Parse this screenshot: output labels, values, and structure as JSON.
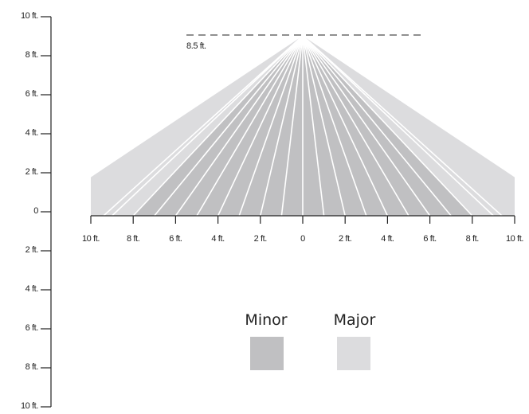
{
  "diagram": {
    "height_label": "8.5 ft.",
    "y_axis_labels": [
      "10 ft.",
      "8 ft.",
      "6 ft.",
      "4 ft.",
      "2 ft.",
      "0",
      "2 ft.",
      "4 ft.",
      "6 ft.",
      "8 ft.",
      "10 ft."
    ],
    "x_axis_labels": [
      "10 ft.",
      "8 ft.",
      "6 ft.",
      "4 ft.",
      "2 ft.",
      "0",
      "2 ft.",
      "4 ft.",
      "6 ft.",
      "8 ft.",
      "10 ft."
    ],
    "minor_zone": {
      "reach_ft": 8,
      "color": "#c0c0c2"
    },
    "major_zone": {
      "reach_ft": 10,
      "edge_height_ft": 2,
      "color": "#dcdcde"
    },
    "ray_color": "#ffffff",
    "axis_color": "#222222"
  },
  "legend": {
    "minor_label": "Minor",
    "minor_color": "#c0c0c2",
    "major_label": "Major",
    "major_color": "#dcdcde"
  }
}
